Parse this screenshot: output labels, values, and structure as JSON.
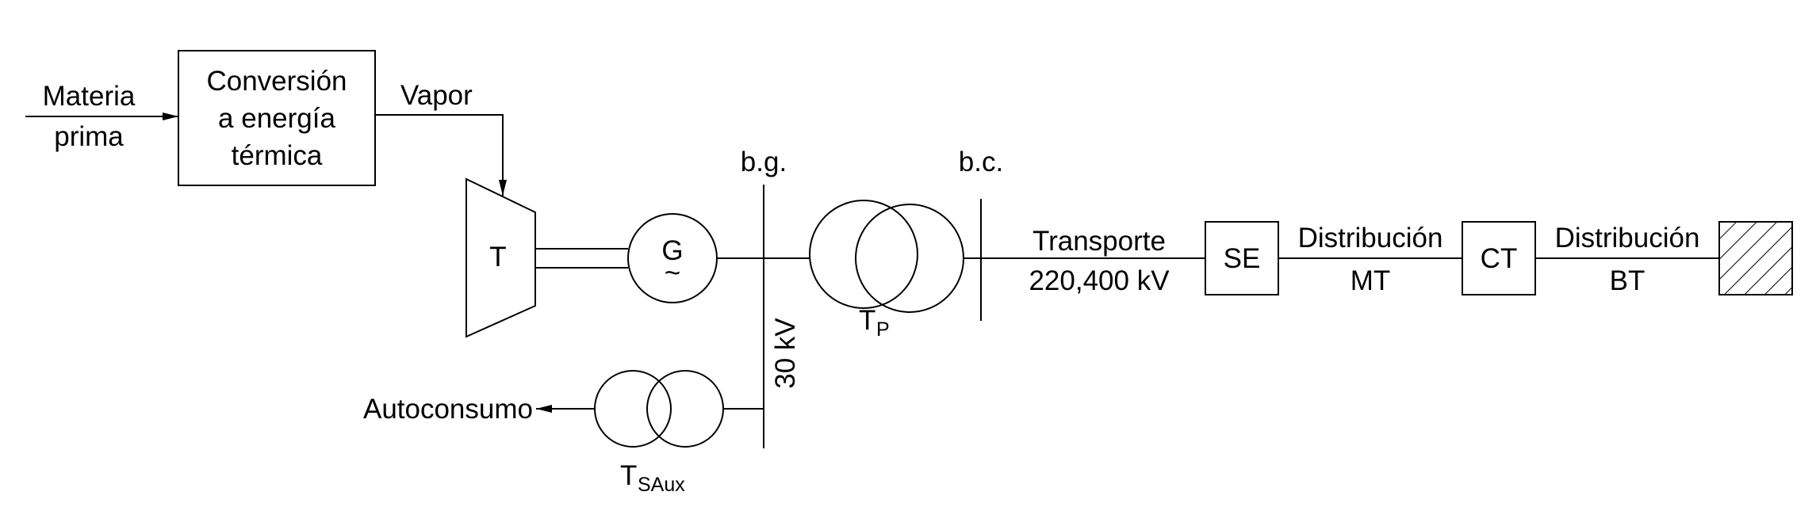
{
  "labels": {
    "input_line1": "Materia",
    "input_line2": "prima",
    "conversion_line1": "Conversión",
    "conversion_line2": "a energía",
    "conversion_line3": "térmica",
    "vapor": "Vapor",
    "turbine": "T",
    "generator": "G",
    "generator_symbol": "~",
    "generation_bus": "b.g.",
    "bus_voltage": "30 kV",
    "power_transformer": "T",
    "power_transformer_sub": "P",
    "connection_bus": "b.c.",
    "transport_line1": "Transporte",
    "transport_line2": "220,400 kV",
    "substation": "SE",
    "dist_mt_line1": "Distribución",
    "dist_mt_line2": "MT",
    "transformation_center": "CT",
    "dist_bt_line1": "Distribución",
    "dist_bt_line2": "BT",
    "self_consumption": "Autoconsumo",
    "aux_transformer": "T",
    "aux_transformer_sub": "SAux"
  },
  "colors": {
    "stroke": "#000000",
    "background": "#ffffff"
  },
  "icons": {
    "load": "hatched-load-icon",
    "generator": "generator-icon",
    "transformer": "transformer-icon",
    "turbine": "turbine-icon"
  }
}
